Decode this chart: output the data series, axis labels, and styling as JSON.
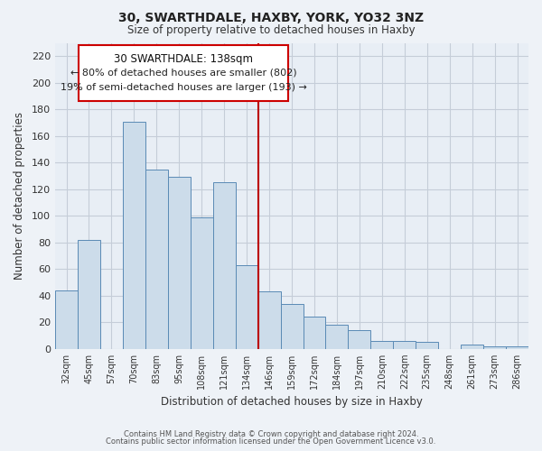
{
  "title": "30, SWARTHDALE, HAXBY, YORK, YO32 3NZ",
  "subtitle": "Size of property relative to detached houses in Haxby",
  "xlabel": "Distribution of detached houses by size in Haxby",
  "ylabel": "Number of detached properties",
  "bar_labels": [
    "32sqm",
    "45sqm",
    "57sqm",
    "70sqm",
    "83sqm",
    "95sqm",
    "108sqm",
    "121sqm",
    "134sqm",
    "146sqm",
    "159sqm",
    "172sqm",
    "184sqm",
    "197sqm",
    "210sqm",
    "222sqm",
    "235sqm",
    "248sqm",
    "261sqm",
    "273sqm",
    "286sqm"
  ],
  "bar_values": [
    44,
    82,
    0,
    171,
    135,
    129,
    99,
    125,
    63,
    43,
    34,
    24,
    18,
    14,
    6,
    6,
    5,
    0,
    3,
    2,
    2
  ],
  "bar_color": "#ccdcea",
  "bar_edge_color": "#5a8ab5",
  "vline_index": 8,
  "vline_color": "#bb0000",
  "ylim": [
    0,
    230
  ],
  "yticks": [
    0,
    20,
    40,
    60,
    80,
    100,
    120,
    140,
    160,
    180,
    200,
    220
  ],
  "annotation_title": "30 SWARTHDALE: 138sqm",
  "annotation_line1": "← 80% of detached houses are smaller (802)",
  "annotation_line2": "19% of semi-detached houses are larger (193) →",
  "annotation_box_color": "#ffffff",
  "annotation_box_edge": "#cc0000",
  "footer1": "Contains HM Land Registry data © Crown copyright and database right 2024.",
  "footer2": "Contains public sector information licensed under the Open Government Licence v3.0.",
  "background_color": "#eef2f7",
  "plot_bg_color": "#e8eef5",
  "grid_color": "#c5cdd8"
}
